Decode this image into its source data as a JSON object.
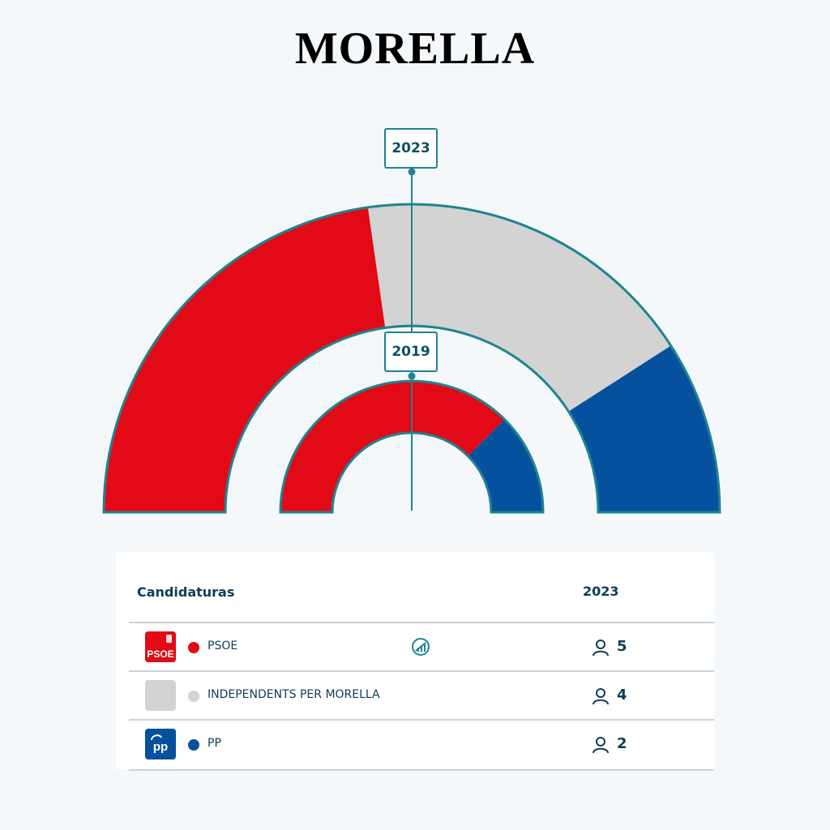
{
  "title": "MORELLA",
  "chart_data": {
    "type": "pie",
    "subtype": "parliament-semicircle",
    "rings": [
      {
        "year": "2023",
        "segments": [
          {
            "party": "PSOE",
            "seats": 5,
            "color": "#e20a16"
          },
          {
            "party": "INDEPENDENTS PER MORELLA",
            "seats": 4,
            "color": "#d3d3d3"
          },
          {
            "party": "PP",
            "seats": 2,
            "color": "#06519d"
          }
        ]
      },
      {
        "year": "2019",
        "segments": [
          {
            "party": "PSOE",
            "seats": 3,
            "color": "#e20a16"
          },
          {
            "party": "PP",
            "seats": 1,
            "color": "#06519d"
          }
        ]
      }
    ]
  },
  "table": {
    "header_candidaturas": "Candidaturas",
    "header_year": "2023",
    "rows": [
      {
        "logo_text": "PSOE",
        "name": "PSOE",
        "seats": "5",
        "color": "#e20a16",
        "logo_bg": "#e20a16",
        "icon": "trend-icon"
      },
      {
        "logo_text": "",
        "name": "INDEPENDENTS PER MORELLA",
        "seats": "4",
        "color": "#d3d3d3",
        "logo_bg": "#d3d3d3"
      },
      {
        "logo_text": "pp",
        "name": "PP",
        "seats": "2",
        "color": "#06519d",
        "logo_bg": "#06519d"
      }
    ]
  },
  "colors": {
    "accent": "#1f8391",
    "text": "#0f3c55",
    "rule": "#c8d3dd"
  }
}
